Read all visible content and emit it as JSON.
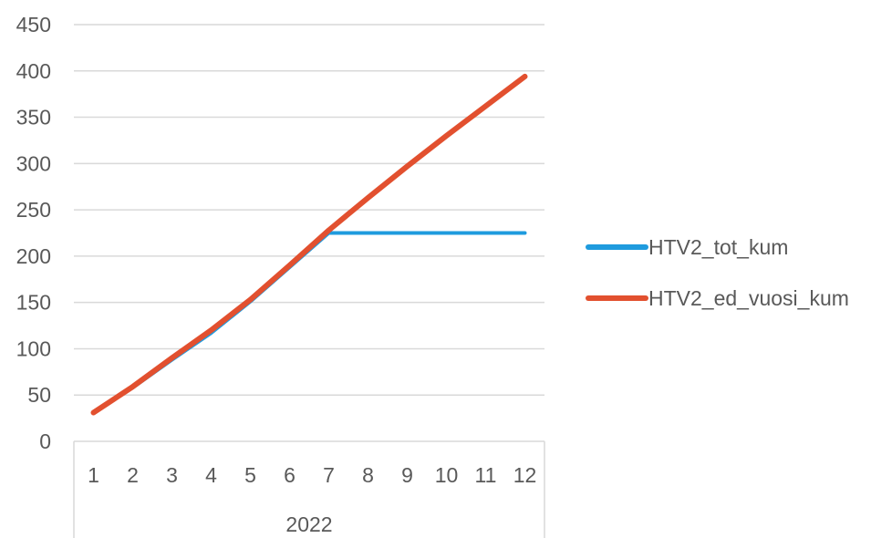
{
  "chart_data": {
    "type": "line",
    "categories": [
      "1",
      "2",
      "3",
      "4",
      "5",
      "6",
      "7",
      "8",
      "9",
      "10",
      "11",
      "12"
    ],
    "group_label": "2022",
    "ylim": [
      0,
      450
    ],
    "y_ticks": [
      "0",
      "50",
      "100",
      "150",
      "200",
      "250",
      "300",
      "350",
      "400",
      "450"
    ],
    "grid": true,
    "legend_position": "right",
    "series": [
      {
        "name": "HTV2_tot_kum",
        "color": "#1F9BDE",
        "values": [
          31,
          58,
          88,
          117,
          151,
          188,
          225,
          225,
          225,
          225,
          225,
          225
        ]
      },
      {
        "name": "HTV2_ed_vuosi_kum",
        "color": "#E2502F",
        "values": [
          31,
          59,
          90,
          120,
          153,
          190,
          228,
          263,
          297,
          330,
          362,
          394
        ]
      }
    ]
  }
}
